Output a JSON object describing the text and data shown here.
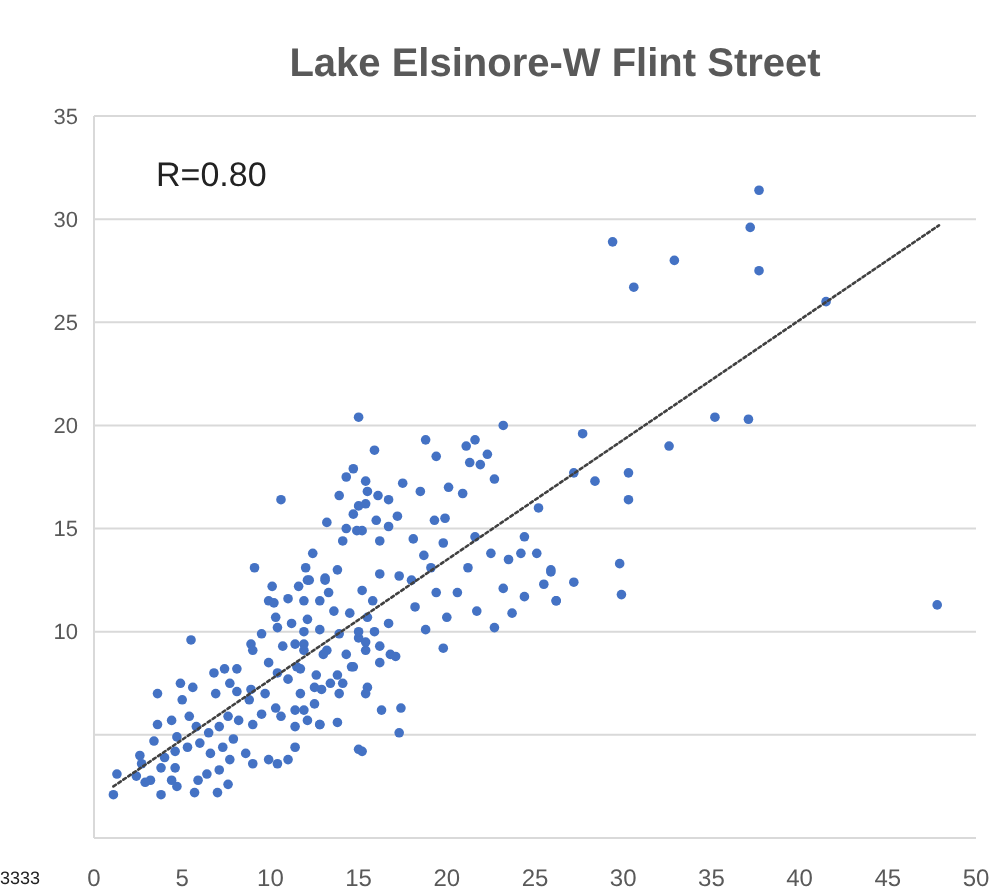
{
  "chart_data": {
    "type": "scatter",
    "title": "Lake Elsinore-W Flint Street",
    "annotations": [
      "R=0.80",
      "3333"
    ],
    "xlim": [
      0,
      50
    ],
    "xticks": [
      0,
      5,
      10,
      15,
      20,
      25,
      30,
      35,
      40,
      45,
      50
    ],
    "ylim": [
      0,
      35
    ],
    "yticks": [
      {
        "value": 0,
        "label": null
      },
      {
        "value": 5,
        "label": null
      },
      10,
      15,
      20,
      25,
      30,
      35
    ],
    "grid": "y",
    "series": [
      {
        "color": "#4472c4",
        "marker": "circle",
        "x": [
          37.7,
          37.2,
          37.7,
          29.4,
          32.9,
          30.6,
          41.5,
          35.2,
          37.1,
          27.7,
          32.6,
          27.2,
          28.4,
          30.3,
          30.3,
          29.8,
          25.9,
          27.2,
          26.2,
          29.9,
          47.8,
          15.0,
          23.2,
          18.8,
          21.6,
          21.1,
          22.3,
          19.4,
          21.3,
          21.9,
          22.7,
          20.1,
          20.9,
          15.9,
          14.7,
          14.3,
          15.4,
          15.5,
          16.1,
          16.7,
          17.5,
          18.5,
          13.9,
          15.0,
          13.2,
          17.2,
          19.3,
          19.9,
          14.3,
          15.2,
          16.7,
          14.1,
          16.2,
          18.1,
          18.7,
          19.8,
          21.6,
          24.4,
          25.2,
          22.5,
          23.5,
          24.2,
          25.1,
          25.9,
          25.5,
          24.4,
          23.2,
          21.2,
          20.6,
          21.7,
          23.7,
          22.7,
          26.2,
          19.1,
          18.0,
          19.4,
          17.3,
          16.2,
          15.2,
          15.8,
          18.2,
          18.8,
          19.8,
          20.0,
          13.8,
          13.1,
          12.1,
          12.8,
          13.6,
          14.5,
          15.5,
          16.7,
          15.9,
          15.0,
          13.9,
          12.8,
          12.1,
          11.9,
          13.2,
          14.3,
          15.4,
          16.8,
          17.1,
          14.7,
          13.8,
          16.2,
          12.6,
          11.5,
          11.7,
          12.9,
          14.1,
          15.5,
          15.4,
          12.5,
          11.9,
          12.8,
          13.8,
          16.3,
          17.4,
          17.3,
          15.0,
          15.2,
          11.4,
          10.6,
          14.7,
          15.4,
          16.0,
          14.9,
          9.1,
          10.1,
          9.9,
          10.2,
          12.4,
          12.0,
          12.2,
          13.1,
          11.6,
          11.0,
          11.9,
          13.3,
          10.3,
          9.5,
          8.9,
          9.0,
          10.4,
          11.2,
          11.9,
          15.0,
          15.4,
          16.2,
          10.7,
          11.4,
          11.9,
          13.0,
          14.6,
          9.9,
          10.4,
          11.0,
          11.7,
          12.5,
          13.4,
          13.9,
          5.5,
          6.8,
          7.4,
          8.1,
          7.7,
          6.9,
          8.1,
          8.9,
          8.8,
          9.7,
          10.3,
          9.5,
          10.6,
          11.4,
          11.4,
          12.1,
          12.8,
          9.0,
          8.2,
          7.6,
          7.1,
          6.5,
          7.9,
          7.3,
          8.6,
          7.7,
          9.0,
          9.9,
          11.0,
          10.4,
          4.9,
          5.6,
          5.0,
          3.6,
          3.6,
          4.4,
          5.4,
          5.8,
          4.7,
          5.3,
          6.0,
          6.6,
          7.1,
          6.4,
          5.9,
          4.0,
          3.8,
          4.6,
          4.4,
          4.7,
          2.7,
          3.2,
          2.9,
          2.4,
          2.6,
          3.8,
          5.7,
          7.0,
          7.6,
          1.3,
          1.1,
          4.6,
          3.4
        ],
        "values": [
          31.4,
          29.6,
          27.5,
          28.9,
          28.0,
          26.7,
          26.0,
          20.4,
          20.3,
          19.6,
          19.0,
          17.7,
          17.3,
          17.7,
          16.4,
          13.3,
          12.9,
          12.4,
          11.5,
          11.8,
          11.3,
          20.4,
          20.0,
          19.3,
          19.3,
          19.0,
          18.6,
          18.5,
          18.2,
          18.1,
          17.4,
          17.0,
          16.7,
          18.8,
          17.9,
          17.5,
          17.3,
          16.8,
          16.6,
          16.4,
          17.2,
          16.8,
          16.6,
          16.1,
          15.3,
          15.6,
          15.4,
          15.5,
          15.0,
          14.9,
          15.1,
          14.4,
          14.4,
          14.5,
          13.7,
          14.3,
          14.6,
          14.6,
          16.0,
          13.8,
          13.5,
          13.8,
          13.8,
          13.0,
          12.3,
          11.7,
          12.1,
          13.1,
          11.9,
          11.0,
          10.9,
          10.2,
          11.5,
          13.1,
          12.5,
          11.9,
          12.7,
          12.8,
          12.0,
          11.5,
          11.2,
          10.1,
          9.2,
          10.7,
          13.0,
          12.5,
          12.5,
          11.5,
          11.0,
          10.9,
          10.7,
          10.4,
          10.0,
          9.7,
          9.9,
          10.1,
          10.6,
          9.4,
          9.1,
          8.9,
          9.1,
          8.9,
          8.8,
          8.3,
          7.9,
          8.5,
          7.9,
          8.3,
          7.0,
          7.2,
          7.5,
          7.3,
          7.0,
          6.5,
          6.2,
          5.5,
          5.6,
          6.2,
          6.3,
          5.1,
          4.3,
          4.2,
          4.4,
          16.4,
          15.7,
          16.2,
          15.4,
          14.9,
          13.1,
          12.2,
          11.5,
          11.4,
          13.8,
          13.1,
          12.5,
          12.6,
          12.2,
          11.6,
          11.5,
          11.9,
          10.7,
          9.9,
          9.4,
          9.1,
          10.2,
          10.4,
          10.0,
          10.0,
          9.5,
          9.3,
          9.3,
          9.4,
          9.1,
          8.9,
          8.3,
          8.5,
          8.0,
          7.7,
          8.2,
          7.3,
          7.5,
          7.0,
          9.6,
          8.0,
          8.2,
          8.2,
          7.5,
          7.0,
          7.1,
          7.2,
          6.7,
          7.0,
          6.3,
          6.0,
          5.9,
          6.2,
          5.4,
          5.7,
          5.5,
          5.5,
          5.7,
          5.9,
          5.4,
          5.1,
          4.8,
          4.4,
          4.1,
          3.8,
          3.6,
          3.8,
          3.8,
          3.6,
          7.5,
          7.3,
          6.7,
          7.0,
          5.5,
          5.7,
          5.9,
          5.4,
          4.9,
          4.4,
          4.6,
          4.1,
          3.3,
          3.1,
          2.8,
          3.9,
          3.4,
          3.4,
          2.8,
          2.5,
          3.6,
          2.8,
          2.7,
          3.0,
          4.0,
          2.1,
          2.2,
          2.2,
          2.6,
          3.1,
          2.1,
          4.2,
          4.7
        ]
      },
      {
        "type": "line",
        "color": "#404040",
        "marker": "none",
        "line_style": "dotted",
        "x": [
          1.1,
          47.9
        ],
        "values": [
          2.5,
          29.7
        ]
      }
    ]
  }
}
